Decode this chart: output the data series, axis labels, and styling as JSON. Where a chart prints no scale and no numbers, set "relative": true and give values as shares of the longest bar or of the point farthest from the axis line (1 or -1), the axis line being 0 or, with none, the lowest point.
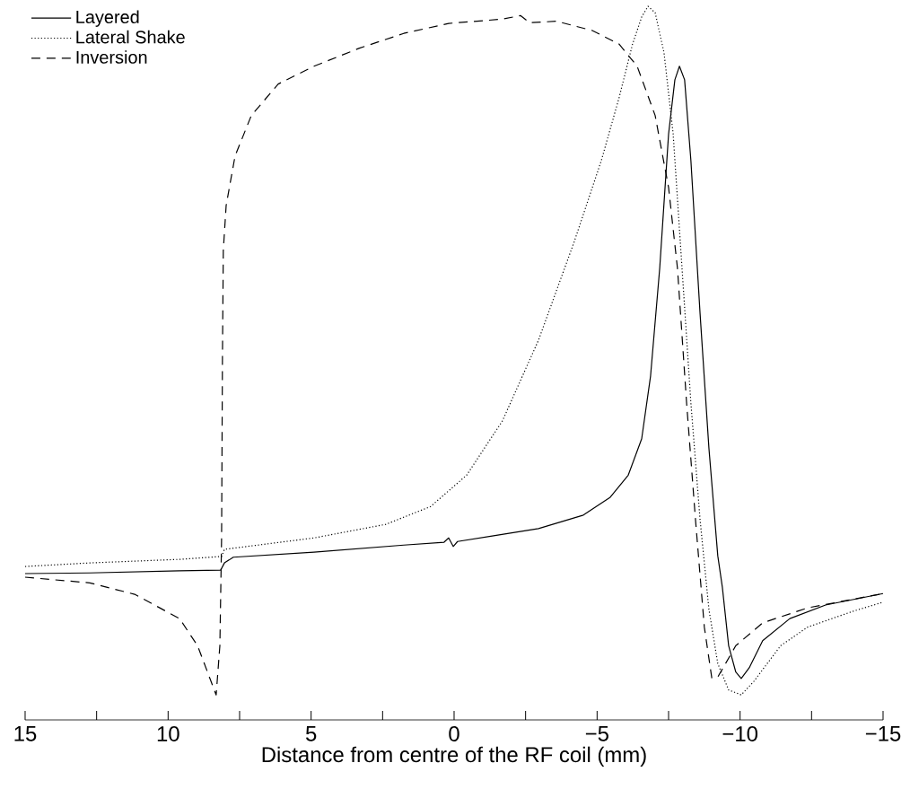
{
  "chart_data": {
    "type": "line",
    "relative": true,
    "xlabel": "Distance from centre of the RF coil (mm)",
    "xlim": [
      15,
      -15
    ],
    "xticks": [
      15,
      {
        "value": 12.5,
        "label": null
      },
      10,
      {
        "value": 7.5,
        "label": null
      },
      5,
      {
        "value": 2.5,
        "label": null
      },
      0,
      {
        "value": -2.5,
        "label": null
      },
      {
        "value": -5,
        "label": "−5"
      },
      {
        "value": -7.5,
        "label": null
      },
      {
        "value": -10,
        "label": "−10"
      },
      {
        "value": -12.5,
        "label": null
      },
      {
        "value": -15,
        "label": "−15"
      }
    ],
    "legend": "top left",
    "grid": false,
    "series": [
      {
        "name": "Layered",
        "color": "#000000",
        "line_style": "solid",
        "x": [
          15,
          12.74,
          9.6,
          8.16,
          8.03,
          7.72,
          4.9,
          1.76,
          0.35,
          0.19,
          0.03,
          -0.12,
          -1.38,
          -2.95,
          -4.52,
          -5.46,
          -6.09,
          -6.56,
          -6.87,
          -7.19,
          -7.5,
          -7.72,
          -7.88,
          -8.06,
          -8.28,
          -8.6,
          -8.91,
          -9.22,
          -9.38,
          -9.6,
          -9.85,
          -10.04,
          -10.32,
          -10.79,
          -11.74,
          -12.99,
          -15
        ],
        "values": [
          0.205,
          0.206,
          0.209,
          0.21,
          0.22,
          0.228,
          0.235,
          0.245,
          0.249,
          0.255,
          0.243,
          0.25,
          0.258,
          0.268,
          0.287,
          0.312,
          0.343,
          0.394,
          0.482,
          0.633,
          0.821,
          0.897,
          0.916,
          0.897,
          0.784,
          0.57,
          0.381,
          0.23,
          0.186,
          0.104,
          0.067,
          0.058,
          0.073,
          0.111,
          0.142,
          0.161,
          0.177
        ]
      },
      {
        "name": "Lateral Shake",
        "color": "#000000",
        "line_style": "dotted",
        "x": [
          15,
          12.74,
          9.6,
          8.13,
          8.03,
          4.9,
          2.39,
          0.82,
          -0.44,
          -1.69,
          -2.95,
          -4.2,
          -5.15,
          -5.77,
          -6.24,
          -6.56,
          -6.78,
          -7.03,
          -7.34,
          -7.66,
          -7.97,
          -8.28,
          -8.6,
          -8.91,
          -9.22,
          -9.6,
          -10.04,
          -10.48,
          -11.42,
          -12.36,
          -13.93,
          -15
        ],
        "values": [
          0.215,
          0.22,
          0.225,
          0.229,
          0.239,
          0.255,
          0.274,
          0.299,
          0.343,
          0.419,
          0.532,
          0.67,
          0.784,
          0.872,
          0.947,
          0.985,
          1.0,
          0.991,
          0.935,
          0.821,
          0.633,
          0.444,
          0.281,
          0.155,
          0.079,
          0.042,
          0.035,
          0.054,
          0.104,
          0.13,
          0.152,
          0.165
        ]
      },
      {
        "name": "Inversion",
        "color": "#000000",
        "line_style": "dashed",
        "x": [
          15,
          12.74,
          11.17,
          9.6,
          8.97,
          8.5,
          8.32,
          8.19,
          8.13,
          8.1,
          8.07,
          7.97,
          7.66,
          7.09,
          6.15,
          4.9,
          3.33,
          1.76,
          0.19,
          -1.69,
          -2.32,
          -2.64,
          -3.58,
          -4.83,
          -5.77,
          -6.4,
          -7.03,
          -7.5,
          -7.81,
          -8.13,
          -8.44,
          -8.75,
          -9.01,
          -9.22,
          -9.85,
          -10.79,
          -12.36,
          -15
        ],
        "values": [
          0.2,
          0.192,
          0.176,
          0.142,
          0.104,
          0.054,
          0.035,
          0.104,
          0.255,
          0.507,
          0.658,
          0.721,
          0.79,
          0.847,
          0.891,
          0.916,
          0.941,
          0.962,
          0.976,
          0.982,
          0.987,
          0.977,
          0.979,
          0.966,
          0.947,
          0.916,
          0.847,
          0.746,
          0.633,
          0.444,
          0.281,
          0.13,
          0.059,
          0.06,
          0.104,
          0.136,
          0.157,
          0.177
        ]
      }
    ]
  }
}
